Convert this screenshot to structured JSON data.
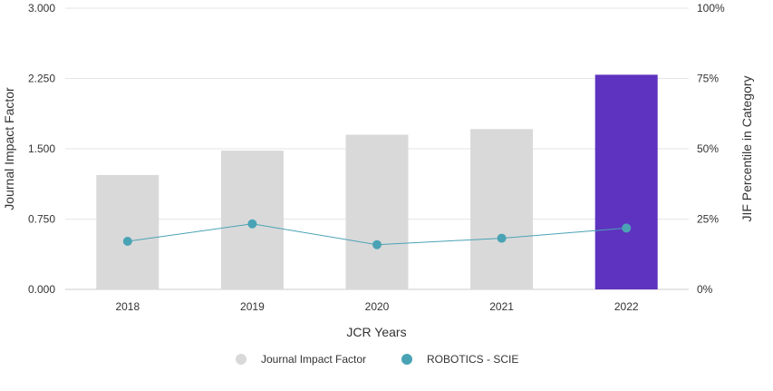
{
  "chart_data": {
    "type": "bar",
    "categories": [
      "2018",
      "2019",
      "2020",
      "2021",
      "2022"
    ],
    "series": [
      {
        "name": "Journal Impact Factor",
        "type": "bar",
        "axis": "left",
        "values": [
          1.22,
          1.48,
          1.65,
          1.71,
          2.29
        ],
        "colors": [
          "#d9d9d9",
          "#d9d9d9",
          "#d9d9d9",
          "#d9d9d9",
          "#5e33bf"
        ],
        "legend_color": "#d9d9d9"
      },
      {
        "name": "ROBOTICS - SCIE",
        "type": "line",
        "axis": "right",
        "values": [
          17.1,
          23.3,
          15.9,
          18.2,
          21.8
        ],
        "color": "#4aa3b5"
      }
    ],
    "xlabel": "JCR Years",
    "ylabel": "Journal Impact Factor",
    "y2label": "JIF Percentile in Category",
    "ylim": [
      0,
      3
    ],
    "y2lim": [
      0,
      100
    ],
    "yticks": [
      "0.000",
      "0.750",
      "1.500",
      "2.250",
      "3.000"
    ],
    "yticks_values": [
      0,
      0.75,
      1.5,
      2.25,
      3
    ],
    "y2ticks": [
      "0%",
      "25%",
      "50%",
      "75%",
      "100%"
    ],
    "grid": true,
    "legend_position": "bottom-center"
  }
}
